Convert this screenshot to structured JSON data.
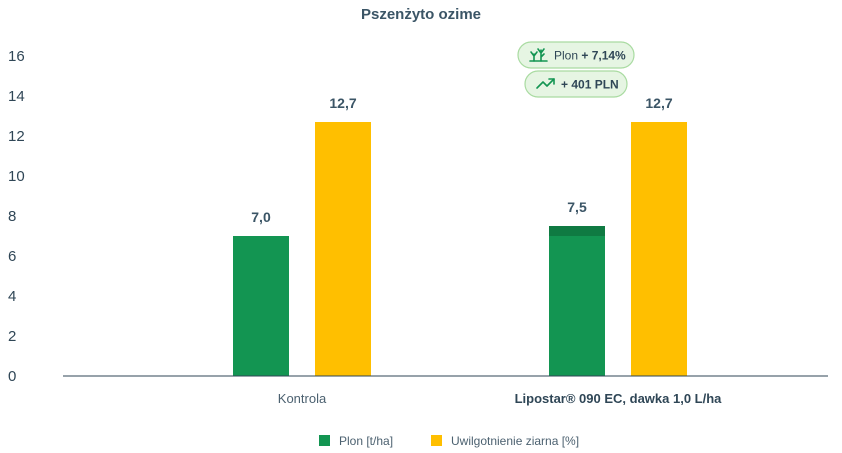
{
  "chart_data": {
    "type": "bar",
    "title": "Pszenżyto ozime",
    "categories": [
      "Kontrola",
      "Lipostar® 090 EC, dawka 1,0 L/ha"
    ],
    "series": [
      {
        "name": "Plon [t/ha]",
        "values": [
          7.0,
          7.5
        ],
        "labels": [
          "7,0",
          "7,5"
        ],
        "color": "#139552"
      },
      {
        "name": "Uwilgotnienie ziarna [%]",
        "values": [
          12.7,
          12.7
        ],
        "labels": [
          "12,7",
          "12,7"
        ],
        "color": "#ffbf00"
      }
    ],
    "increase_color": "#0f7a42",
    "ylim": [
      0,
      16
    ],
    "yticks": [
      0,
      2,
      4,
      6,
      8,
      10,
      12,
      14,
      16
    ],
    "grid": false,
    "legend": "bottom",
    "annotations": [
      {
        "category": "Lipostar® 090 EC, dawka 1,0 L/ha",
        "icon": "plant-growth-icon",
        "text": "Plon ",
        "value": "+ 7,14%"
      },
      {
        "category": "Lipostar® 090 EC, dawka 1,0 L/ha",
        "icon": "trending-up-icon",
        "text": "",
        "value": "+ 401 PLN"
      }
    ]
  }
}
